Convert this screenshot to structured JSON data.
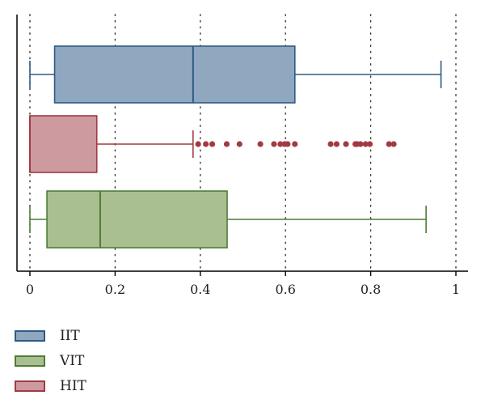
{
  "chart_data": {
    "type": "boxplot",
    "orientation": "horizontal",
    "xlim": [
      0,
      1
    ],
    "xticks": [
      0,
      0.2,
      0.4,
      0.6,
      0.8,
      1
    ],
    "xtick_labels": [
      "0",
      "0.2",
      "0.4",
      "0.6",
      "0.8",
      "1"
    ],
    "grid": "vertical dotted",
    "legend_position": "bottom-left",
    "series": [
      {
        "name": "IIT",
        "fill": "#8fa7bf",
        "stroke": "#2e5a85",
        "whisker_low": 0.0,
        "q1": 0.058,
        "median": 0.383,
        "q3": 0.622,
        "whisker_high": 0.965,
        "outliers": []
      },
      {
        "name": "HIT",
        "fill": "#cc9a9f",
        "stroke": "#a23a43",
        "whisker_low": 0.0,
        "q1": 0.0,
        "median": 0.0,
        "q3": 0.157,
        "whisker_high": 0.383,
        "outliers": [
          0.395,
          0.413,
          0.428,
          0.462,
          0.492,
          0.541,
          0.573,
          0.588,
          0.598,
          0.605,
          0.622,
          0.706,
          0.72,
          0.742,
          0.764,
          0.768,
          0.776,
          0.788,
          0.798,
          0.843,
          0.854
        ]
      },
      {
        "name": "VIT",
        "fill": "#a9bf92",
        "stroke": "#4e7d35",
        "whisker_low": 0.0,
        "q1": 0.04,
        "median": 0.165,
        "q3": 0.463,
        "whisker_high": 0.93,
        "outliers": []
      }
    ]
  },
  "legend": [
    {
      "label": "IIT",
      "fill": "#8fa7bf",
      "stroke": "#2e5a85"
    },
    {
      "label": "VIT",
      "fill": "#a9bf92",
      "stroke": "#4e7d35"
    },
    {
      "label": "HIT",
      "fill": "#cc9a9f",
      "stroke": "#a23a43"
    }
  ]
}
